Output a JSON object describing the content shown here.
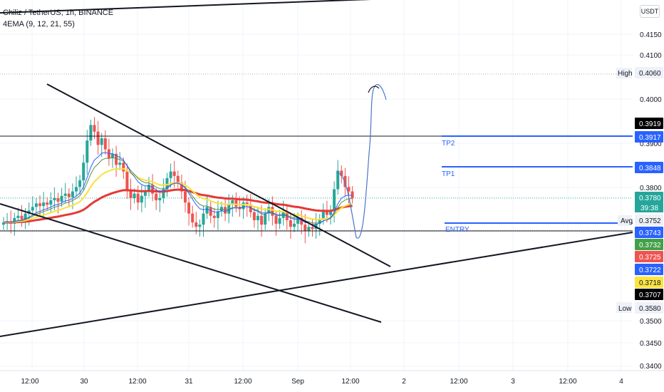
{
  "header": {
    "symbol_line": "Chiliz / TetherUS, 1h, BINANCE",
    "indicator_line": "4EMA (9, 12, 21, 55)"
  },
  "currency_button": "USDT",
  "price_axis": {
    "ticks": [
      "0.4150",
      "0.4100",
      "0.4000",
      "0.3900",
      "0.3800",
      "0.3500",
      "0.3450",
      "0.3400"
    ]
  },
  "price_tags": [
    {
      "value": "0.4060",
      "bg": "#eef1f8",
      "fg": "#131722"
    },
    {
      "value": "0.3919",
      "bg": "#000000",
      "fg": "#ffffff"
    },
    {
      "value": "0.3917",
      "bg": "#2962ff",
      "fg": "#ffffff"
    },
    {
      "value": "0.3848",
      "bg": "#2962ff",
      "fg": "#ffffff"
    },
    {
      "value": "0.3780",
      "bg": "#26a69a",
      "fg": "#ffffff"
    },
    {
      "value": "0.3752",
      "bg": "#eef1f8",
      "fg": "#131722"
    },
    {
      "value": "0.3743",
      "bg": "#2962ff",
      "fg": "#ffffff"
    },
    {
      "value": "0.3732",
      "bg": "#43a047",
      "fg": "#ffffff"
    },
    {
      "value": "0.3725",
      "bg": "#ef5350",
      "fg": "#ffffff"
    },
    {
      "value": "0.3722",
      "bg": "#2962ff",
      "fg": "#ffffff"
    },
    {
      "value": "0.3718",
      "bg": "#fbe443",
      "fg": "#131722"
    },
    {
      "value": "0.3707",
      "bg": "#000000",
      "fg": "#ffffff"
    },
    {
      "value": "0.3580",
      "bg": "#eef1f8",
      "fg": "#131722"
    }
  ],
  "countdown": "39:38",
  "side_labels": {
    "high": "High",
    "avg": "Avg",
    "low": "Low"
  },
  "levels": {
    "tp2": "TP2",
    "tp1": "TP1",
    "entry": "ENTRY"
  },
  "time_axis": {
    "labels": [
      "12:00",
      "30",
      "12:00",
      "31",
      "12:00",
      "Sep",
      "12:00",
      "2",
      "12:00",
      "3",
      "12:00",
      "4"
    ]
  },
  "colors": {
    "up": "#26a69a",
    "down": "#ef5350",
    "ema9": "#2962ff",
    "ema12": "#5c8d4f",
    "ema21": "#f9e03b",
    "ema55": "#e53935",
    "level_blue": "#2962ff"
  },
  "icons": {
    "logo": "tradingview-logo-icon"
  }
}
